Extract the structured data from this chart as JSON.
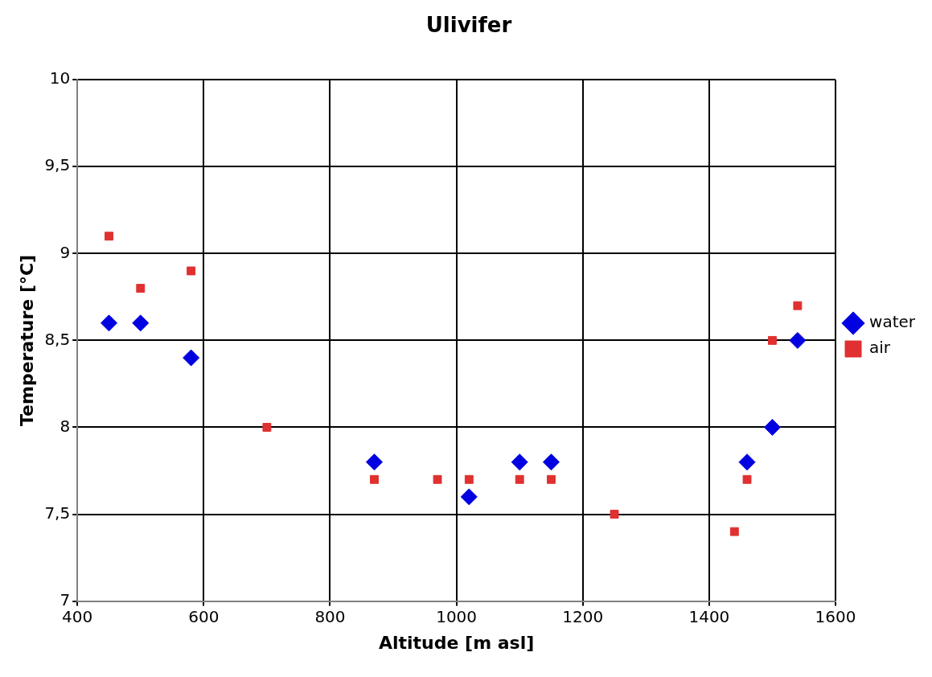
{
  "chart_data": {
    "type": "scatter",
    "title": "Ulivifer",
    "xlabel": "Altitude [m asl]",
    "ylabel": "Temperature [°C]",
    "xlim": [
      400,
      1600
    ],
    "xticks": [
      400,
      600,
      800,
      1000,
      1200,
      1400,
      1600
    ],
    "ylim": [
      7,
      10
    ],
    "yticks": [
      7,
      {
        "value": 7.5,
        "label": "7,5"
      },
      8,
      {
        "value": 8.5,
        "label": "8,5"
      },
      9,
      {
        "value": 9.5,
        "label": "9,5"
      },
      10
    ],
    "grid": true,
    "legend": "right",
    "series": [
      {
        "name": "water",
        "color": "#0000e0",
        "marker": "diamond",
        "x": [
          450,
          500,
          580,
          870,
          1020,
          1100,
          1150,
          1460,
          1500,
          1540
        ],
        "values": [
          8.6,
          8.6,
          8.4,
          7.8,
          7.6,
          7.8,
          7.8,
          7.8,
          8.0,
          8.5
        ]
      },
      {
        "name": "air",
        "color": "#e03030",
        "marker": "square",
        "x": [
          450,
          500,
          580,
          700,
          870,
          970,
          1020,
          1100,
          1150,
          1250,
          1440,
          1460,
          1500,
          1540
        ],
        "values": [
          9.1,
          8.8,
          8.9,
          8.0,
          7.7,
          7.7,
          7.7,
          7.7,
          7.7,
          7.5,
          7.4,
          7.7,
          8.5,
          8.7
        ]
      }
    ]
  }
}
